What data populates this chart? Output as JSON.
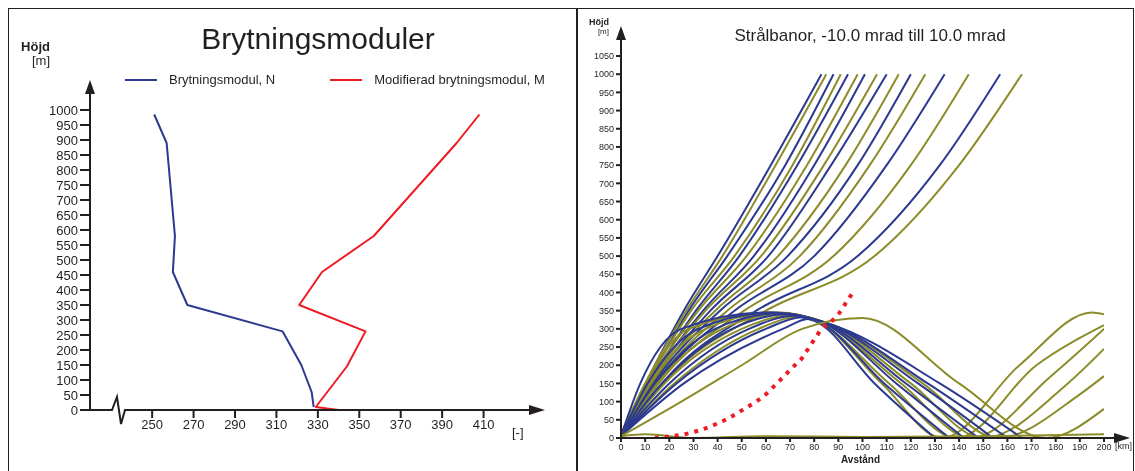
{
  "chart_data": [
    {
      "type": "line",
      "title": "Brytningsmoduler",
      "xlabel": "[-]",
      "ylabel": "Höjd [m]",
      "xlim": [
        220,
        430
      ],
      "xticks": [
        250,
        270,
        290,
        310,
        330,
        350,
        370,
        390,
        410
      ],
      "ylim": [
        0,
        1000
      ],
      "yticks": [
        0,
        50,
        100,
        150,
        200,
        250,
        300,
        350,
        400,
        450,
        500,
        550,
        600,
        650,
        700,
        750,
        800,
        850,
        900,
        950,
        1000
      ],
      "legend": "top",
      "marker": "none",
      "series": [
        {
          "name": "Brytningsmodul, N",
          "color": "#2b3990",
          "x": [
            251,
            257,
            261,
            260,
            267,
            313,
            322,
            327,
            328
          ],
          "values": [
            985,
            890,
            580,
            460,
            350,
            262,
            150,
            60,
            10
          ]
        },
        {
          "name": "Modifierad brytningsmodul, M",
          "color": "#ed1c24",
          "x": [
            340,
            329,
            344,
            353,
            321,
            332,
            357,
            397,
            408
          ],
          "values": [
            0,
            10,
            145,
            262,
            350,
            460,
            580,
            890,
            985
          ]
        }
      ]
    },
    {
      "type": "line",
      "title": "Strålbanor, -10.0 mrad till 10.0 mrad",
      "xlabel": "Avstånd",
      "ylabel": "Höjd [m]",
      "annotations": [
        "[km]"
      ],
      "xlim": [
        0,
        200
      ],
      "xticks": [
        0,
        10,
        20,
        30,
        40,
        50,
        60,
        70,
        80,
        90,
        100,
        110,
        120,
        130,
        140,
        150,
        160,
        170,
        180,
        190,
        200
      ],
      "ylim": [
        0,
        1050
      ],
      "yticks": [
        0,
        50,
        100,
        150,
        200,
        250,
        300,
        350,
        400,
        450,
        500,
        550,
        600,
        650,
        700,
        750,
        800,
        850,
        900,
        950,
        1000,
        1050
      ],
      "marker": "none",
      "series": [
        {
          "color": "#2b3990",
          "x": [
            0,
            14,
            26,
            40,
            62,
            83
          ],
          "values": [
            10,
            200,
            350,
            500,
            750,
            1000
          ]
        },
        {
          "color": "#8c8c2a",
          "x": [
            0,
            14,
            27,
            42,
            64,
            85
          ],
          "values": [
            10,
            200,
            350,
            500,
            750,
            1000
          ]
        },
        {
          "color": "#2b3990",
          "x": [
            0,
            15,
            28,
            44,
            68,
            88
          ],
          "values": [
            10,
            200,
            350,
            500,
            750,
            1000
          ]
        },
        {
          "color": "#8c8c2a",
          "x": [
            0,
            15,
            29,
            47,
            71,
            91
          ],
          "values": [
            10,
            200,
            350,
            500,
            750,
            1000
          ]
        },
        {
          "color": "#2b3990",
          "x": [
            0,
            16,
            31,
            49,
            73,
            94
          ],
          "values": [
            10,
            200,
            350,
            500,
            750,
            1000
          ]
        },
        {
          "color": "#8c8c2a",
          "x": [
            0,
            16,
            32,
            52,
            77,
            98
          ],
          "values": [
            10,
            200,
            350,
            500,
            750,
            1000
          ]
        },
        {
          "color": "#2b3990",
          "x": [
            0,
            17,
            34,
            55,
            80,
            101
          ],
          "values": [
            10,
            200,
            350,
            500,
            750,
            1000
          ]
        },
        {
          "color": "#8c8c2a",
          "x": [
            0,
            17,
            35,
            58,
            84,
            106
          ],
          "values": [
            10,
            200,
            350,
            500,
            750,
            1000
          ]
        },
        {
          "color": "#2b3990",
          "x": [
            0,
            18,
            37,
            61,
            87,
            110
          ],
          "values": [
            10,
            200,
            350,
            500,
            750,
            1000
          ]
        },
        {
          "color": "#8c8c2a",
          "x": [
            0,
            18,
            39,
            65,
            93,
            115
          ],
          "values": [
            10,
            200,
            350,
            500,
            750,
            1000
          ]
        },
        {
          "color": "#2b3990",
          "x": [
            0,
            19,
            41,
            69,
            98,
            120
          ],
          "values": [
            10,
            200,
            350,
            500,
            750,
            1000
          ]
        },
        {
          "color": "#8c8c2a",
          "x": [
            0,
            20,
            44,
            74,
            103,
            126
          ],
          "values": [
            10,
            200,
            350,
            500,
            750,
            1000
          ]
        },
        {
          "color": "#2b3990",
          "x": [
            0,
            21,
            47,
            80,
            110,
            134
          ],
          "values": [
            10,
            200,
            350,
            500,
            750,
            1000
          ]
        },
        {
          "color": "#8c8c2a",
          "x": [
            0,
            22,
            51,
            88,
            120,
            144
          ],
          "values": [
            10,
            200,
            350,
            500,
            750,
            1000
          ]
        },
        {
          "color": "#2b3990",
          "x": [
            0,
            24,
            56,
            98,
            132,
            157
          ],
          "values": [
            10,
            200,
            350,
            500,
            750,
            1000
          ]
        },
        {
          "color": "#8c8c2a",
          "x": [
            0,
            25,
            60,
            105,
            140,
            166
          ],
          "values": [
            10,
            200,
            350,
            500,
            750,
            1000
          ]
        },
        {
          "color": "#8c8c2a",
          "x": [
            0,
            10,
            28,
            62,
            80,
            108,
            133,
            165,
            195,
            200
          ],
          "values": [
            5,
            150,
            300,
            345,
            325,
            150,
            0,
            200,
            345,
            340
          ]
        },
        {
          "color": "#2b3990",
          "x": [
            0,
            8,
            25,
            60,
            80,
            105,
            130
          ],
          "values": [
            5,
            150,
            300,
            345,
            322,
            150,
            0
          ]
        },
        {
          "color": "#8c8c2a",
          "x": [
            0,
            12,
            35,
            65,
            81,
            111,
            139,
            172,
            200
          ],
          "values": [
            5,
            150,
            300,
            345,
            322,
            150,
            0,
            200,
            310
          ]
        },
        {
          "color": "#2b3990",
          "x": [
            0,
            11,
            32,
            63,
            81,
            109,
            136
          ],
          "values": [
            5,
            150,
            300,
            345,
            322,
            150,
            0
          ]
        },
        {
          "color": "#8c8c2a",
          "x": [
            0,
            15,
            42,
            68,
            82,
            116,
            145,
            178,
            200
          ],
          "values": [
            5,
            150,
            300,
            342,
            321,
            150,
            0,
            170,
            300
          ]
        },
        {
          "color": "#2b3990",
          "x": [
            0,
            14,
            39,
            66,
            82,
            114,
            142
          ],
          "values": [
            5,
            150,
            300,
            343,
            322,
            150,
            0
          ]
        },
        {
          "color": "#8c8c2a",
          "x": [
            0,
            18,
            50,
            71,
            84,
            120,
            150,
            185,
            200
          ],
          "values": [
            5,
            150,
            300,
            338,
            319,
            150,
            0,
            150,
            245
          ]
        },
        {
          "color": "#2b3990",
          "x": [
            0,
            17,
            46,
            69,
            83,
            118,
            148
          ],
          "values": [
            5,
            150,
            300,
            340,
            320,
            150,
            0
          ]
        },
        {
          "color": "#8c8c2a",
          "x": [
            0,
            22,
            57,
            74,
            85,
            125,
            156,
            190,
            200
          ],
          "values": [
            5,
            150,
            300,
            334,
            317,
            150,
            0,
            120,
            170
          ]
        },
        {
          "color": "#2b3990",
          "x": [
            0,
            20,
            53,
            72,
            84,
            123,
            154
          ],
          "values": [
            5,
            150,
            300,
            336,
            318,
            150,
            0
          ]
        },
        {
          "color": "#2b3990",
          "x": [
            0,
            23,
            60,
            75,
            85,
            127,
            160
          ],
          "values": [
            5,
            150,
            300,
            332,
            316,
            150,
            0
          ]
        },
        {
          "color": "#2b3990",
          "x": [
            0,
            26,
            67,
            78,
            86,
            132,
            166
          ],
          "values": [
            5,
            150,
            300,
            328,
            314,
            150,
            0
          ]
        },
        {
          "color": "#8c8c2a",
          "x": [
            0,
            25,
            50,
            75,
            100,
            140,
            176,
            200
          ],
          "values": [
            5,
            100,
            200,
            300,
            330,
            150,
            0,
            80
          ]
        },
        {
          "color": "#8c8c2a",
          "x": [
            0,
            10,
            30,
            60,
            100,
            150,
            200
          ],
          "values": [
            5,
            10,
            0,
            5,
            3,
            5,
            10
          ]
        },
        {
          "color": "#ed1c24",
          "line_style": "dotted",
          "x": [
            14,
            32,
            40,
            46,
            51,
            56,
            60,
            63,
            66,
            69,
            72,
            75,
            77,
            79,
            81,
            83,
            87,
            90,
            93,
            96
          ],
          "values": [
            0,
            20,
            40,
            60,
            80,
            100,
            120,
            140,
            160,
            180,
            200,
            220,
            240,
            260,
            280,
            300,
            320,
            340,
            370,
            400
          ]
        }
      ]
    }
  ]
}
